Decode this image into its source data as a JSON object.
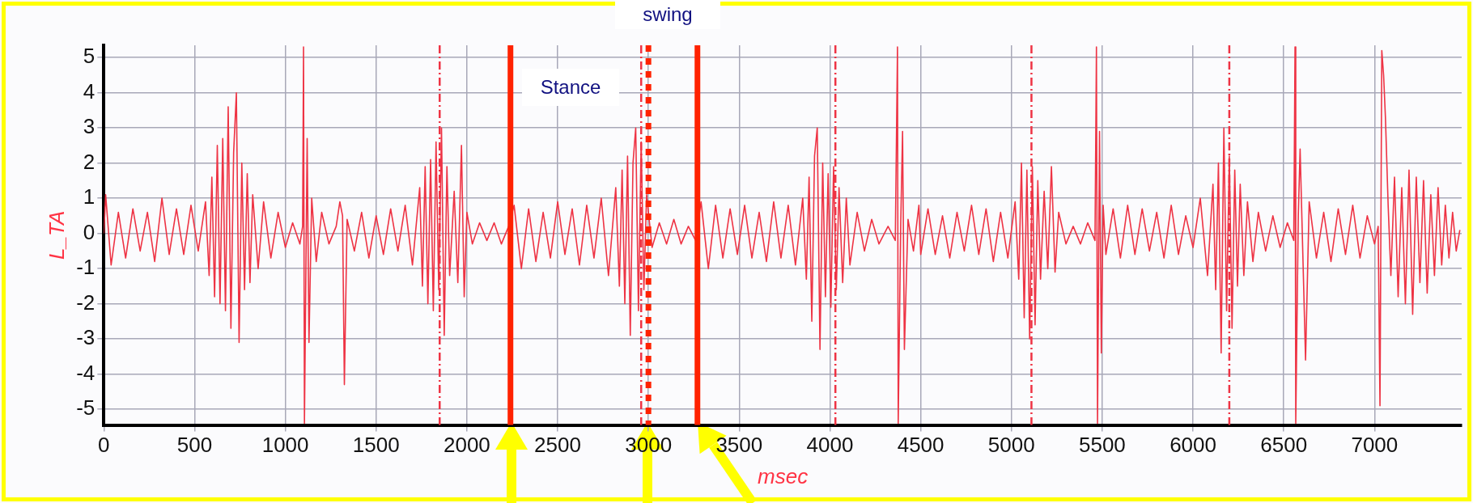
{
  "chart_data": {
    "type": "line",
    "xlabel": "msec",
    "ylabel": "L_TA",
    "annotations": [
      "swing",
      "Stance"
    ],
    "xlim": [
      0,
      7480
    ],
    "xticks": [
      0,
      500,
      1000,
      1500,
      2000,
      2500,
      3000,
      3500,
      4000,
      4500,
      5000,
      5500,
      6000,
      6500,
      7000
    ],
    "ylim": [
      -5.45,
      5.35
    ],
    "yticks": [
      -5,
      -4,
      -3,
      -2,
      -1,
      0,
      1,
      2,
      3,
      4,
      5
    ],
    "grid": true,
    "legend": false,
    "marker": "none",
    "ref_lines": [
      {
        "axis": "x",
        "value": 1850,
        "color": "#ee3344",
        "line_style": "dashed"
      },
      {
        "axis": "x",
        "value": 2240,
        "color": "#ff2200",
        "line_style": "solid"
      },
      {
        "axis": "x",
        "value": 2960,
        "color": "#ee3344",
        "line_style": "dashed"
      },
      {
        "axis": "x",
        "value": 3000,
        "color": "#ff2200",
        "line_style": "dotted"
      },
      {
        "axis": "x",
        "value": 3270,
        "color": "#ff2200",
        "line_style": "solid"
      },
      {
        "axis": "x",
        "value": 4030,
        "color": "#ee3344",
        "line_style": "dashed"
      },
      {
        "axis": "x",
        "value": 5110,
        "color": "#ee3344",
        "line_style": "dashed"
      },
      {
        "axis": "x",
        "value": 6200,
        "color": "#ee3344",
        "line_style": "dashed"
      }
    ],
    "series": [
      {
        "color": "#ee3344",
        "line_style": "solid",
        "x": [
          0,
          10,
          40,
          80,
          120,
          160,
          200,
          240,
          280,
          320,
          360,
          400,
          440,
          480,
          520,
          560,
          580,
          595,
          610,
          625,
          640,
          655,
          670,
          685,
          700,
          715,
          730,
          745,
          760,
          775,
          790,
          805,
          820,
          850,
          880,
          920,
          960,
          1000,
          1040,
          1080,
          1095,
          1100,
          1105,
          1120,
          1130,
          1145,
          1170,
          1200,
          1240,
          1280,
          1300,
          1315,
          1325,
          1340,
          1380,
          1420,
          1460,
          1500,
          1540,
          1580,
          1620,
          1660,
          1700,
          1740,
          1755,
          1770,
          1785,
          1800,
          1815,
          1830,
          1845,
          1860,
          1875,
          1890,
          1905,
          1930,
          1950,
          1970,
          1985,
          2000,
          2030,
          2070,
          2110,
          2150,
          2190,
          2230,
          2260,
          2300,
          2340,
          2380,
          2420,
          2460,
          2500,
          2540,
          2580,
          2620,
          2660,
          2700,
          2740,
          2780,
          2820,
          2840,
          2855,
          2870,
          2885,
          2900,
          2915,
          2930,
          2945,
          2960,
          2975,
          2990,
          3020,
          3060,
          3100,
          3140,
          3180,
          3220,
          3260,
          3290,
          3330,
          3370,
          3410,
          3450,
          3490,
          3530,
          3570,
          3610,
          3650,
          3690,
          3730,
          3770,
          3810,
          3850,
          3870,
          3885,
          3900,
          3915,
          3930,
          3945,
          3960,
          3975,
          3990,
          4005,
          4020,
          4035,
          4050,
          4070,
          4090,
          4110,
          4150,
          4190,
          4230,
          4270,
          4320,
          4360,
          4372,
          4376,
          4390,
          4400,
          4410,
          4430,
          4460,
          4490,
          4500,
          4540,
          4580,
          4620,
          4660,
          4700,
          4740,
          4780,
          4820,
          4860,
          4900,
          4940,
          4980,
          5020,
          5040,
          5055,
          5070,
          5085,
          5100,
          5115,
          5130,
          5145,
          5160,
          5180,
          5200,
          5220,
          5240,
          5260,
          5300,
          5340,
          5380,
          5420,
          5460,
          5468,
          5474,
          5485,
          5495,
          5505,
          5520,
          5560,
          5600,
          5640,
          5680,
          5720,
          5760,
          5800,
          5840,
          5880,
          5920,
          5960,
          6000,
          6040,
          6080,
          6110,
          6125,
          6140,
          6155,
          6170,
          6185,
          6200,
          6215,
          6230,
          6245,
          6260,
          6280,
          6300,
          6330,
          6360,
          6400,
          6440,
          6480,
          6520,
          6555,
          6562,
          6566,
          6580,
          6590,
          6605,
          6620,
          6640,
          6680,
          6720,
          6760,
          6800,
          6840,
          6880,
          6920,
          6960,
          7000,
          7020,
          7030,
          7040,
          7050,
          7060,
          7075,
          7090,
          7110,
          7130,
          7150,
          7170,
          7190,
          7210,
          7230,
          7250,
          7270,
          7290,
          7310,
          7330,
          7350,
          7370,
          7390,
          7410,
          7430,
          7450,
          7470
        ],
        "values": [
          0,
          1.1,
          -0.9,
          0.6,
          -0.7,
          0.7,
          -0.5,
          0.6,
          -0.8,
          1.0,
          -0.6,
          0.7,
          -0.6,
          0.8,
          -0.5,
          0.9,
          -1.2,
          1.6,
          -1.8,
          2.5,
          -2.0,
          2.7,
          -2.2,
          3.6,
          -2.7,
          2.3,
          4.0,
          -3.1,
          2.0,
          -1.6,
          1.7,
          -1.4,
          1.1,
          -1.0,
          0.9,
          -0.7,
          0.6,
          -0.4,
          0.3,
          -0.3,
          0.2,
          5.3,
          -5.4,
          2.7,
          -3.1,
          1.0,
          -0.8,
          0.6,
          -0.3,
          0.2,
          0.9,
          0.5,
          -4.3,
          0.4,
          -0.5,
          0.6,
          -0.7,
          0.5,
          -0.6,
          0.7,
          -0.5,
          0.8,
          -0.9,
          1.3,
          -1.5,
          1.9,
          -2.0,
          2.1,
          -2.2,
          2.6,
          -1.6,
          3.0,
          -2.9,
          1.9,
          -1.2,
          1.2,
          -1.4,
          2.5,
          -1.8,
          0.6,
          -0.3,
          0.3,
          -0.2,
          0.3,
          -0.3,
          0.2,
          0.8,
          -1.0,
          0.7,
          -0.8,
          0.6,
          -0.7,
          0.9,
          -0.6,
          0.7,
          -0.9,
          0.8,
          -0.7,
          1.0,
          -1.2,
          1.3,
          -1.5,
          1.8,
          -2.0,
          2.2,
          -2.9,
          2.0,
          3.0,
          -2.2,
          2.6,
          -1.6,
          1.1,
          -0.4,
          0.3,
          -0.3,
          0.4,
          -0.3,
          0.2,
          -0.2,
          0.9,
          -1.0,
          0.8,
          -0.7,
          0.7,
          -0.6,
          0.8,
          -0.7,
          0.6,
          -0.8,
          0.9,
          -0.7,
          0.8,
          -0.9,
          1.0,
          -1.3,
          1.6,
          -2.5,
          2.2,
          3.0,
          -3.3,
          2.0,
          -1.8,
          1.7,
          -2.1,
          1.9,
          -1.6,
          1.3,
          -1.4,
          1.0,
          -0.9,
          0.6,
          -0.5,
          0.4,
          -0.3,
          0.2,
          -0.2,
          5.3,
          -5.4,
          0.3,
          2.9,
          -3.3,
          0.4,
          -0.5,
          0.8,
          -0.6,
          0.7,
          -0.6,
          0.5,
          -0.7,
          0.6,
          -0.5,
          0.8,
          -0.6,
          0.7,
          -0.8,
          0.6,
          -0.7,
          0.9,
          -1.3,
          2.0,
          -2.4,
          1.8,
          -3.0,
          1.9,
          -2.6,
          1.5,
          -1.3,
          1.2,
          -1.0,
          1.9,
          -1.1,
          0.6,
          -0.3,
          0.2,
          -0.3,
          0.3,
          -0.2,
          5.3,
          -5.4,
          2.9,
          -3.4,
          0.8,
          -0.6,
          0.7,
          -0.7,
          0.8,
          -0.6,
          0.7,
          -0.5,
          0.6,
          -0.7,
          0.8,
          -0.6,
          0.5,
          -0.4,
          1.0,
          -1.2,
          1.4,
          -1.6,
          2.0,
          -3.4,
          3.0,
          -2.2,
          2.2,
          -2.7,
          1.8,
          -1.5,
          1.4,
          -1.2,
          0.9,
          -0.8,
          0.6,
          -0.5,
          0.5,
          -0.4,
          0.3,
          -0.2,
          5.3,
          -5.4,
          0.5,
          2.4,
          -0.6,
          -3.6,
          0.9,
          -0.7,
          0.6,
          -0.8,
          0.7,
          -0.6,
          0.8,
          -0.7,
          0.5,
          -0.3,
          0.2,
          -4.9,
          5.2,
          4.5,
          3.3,
          0.8,
          -1.2,
          1.6,
          -1.8,
          1.3,
          -2.0,
          1.8,
          -2.3,
          1.6,
          -1.4,
          1.5,
          -1.7,
          1.1,
          -1.2,
          1.3,
          -0.9,
          0.8,
          -0.7,
          0.6,
          -0.5,
          0.1
        ]
      }
    ]
  }
}
